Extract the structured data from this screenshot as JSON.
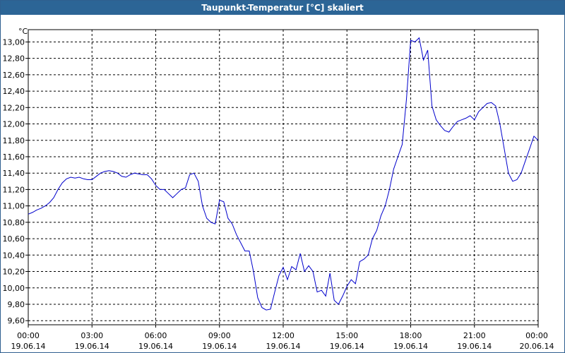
{
  "window": {
    "title": "Taupunkt-Temperatur [°C] skaliert"
  },
  "colors": {
    "line": "#0000cc",
    "grid": "#000000",
    "titlebar": "#2c6596"
  },
  "chart_data": {
    "type": "line",
    "title": "Taupunkt-Temperatur [°C] skaliert",
    "unit": "°C",
    "grid": true,
    "ylim": [
      9.55,
      13.15
    ],
    "y_ticks": [
      "13,00",
      "12,80",
      "12,60",
      "12,40",
      "12,20",
      "12,00",
      "11,80",
      "11,60",
      "11,40",
      "11,20",
      "11,00",
      "10,80",
      "10,60",
      "10,40",
      "10,20",
      "10,00",
      "9,80",
      "9,60"
    ],
    "y_tick_values": [
      13.0,
      12.8,
      12.6,
      12.4,
      12.2,
      12.0,
      11.8,
      11.6,
      11.4,
      11.2,
      11.0,
      10.8,
      10.6,
      10.4,
      10.2,
      10.0,
      9.8,
      9.6
    ],
    "xlim": [
      0,
      24
    ],
    "x_ticks": [
      {
        "time": "00:00",
        "date": "19.06.14"
      },
      {
        "time": "03:00",
        "date": "19.06.14"
      },
      {
        "time": "06:00",
        "date": "19.06.14"
      },
      {
        "time": "09:00",
        "date": "19.06.14"
      },
      {
        "time": "12:00",
        "date": "19.06.14"
      },
      {
        "time": "15:00",
        "date": "19.06.14"
      },
      {
        "time": "18:00",
        "date": "19.06.14"
      },
      {
        "time": "21:00",
        "date": "19.06.14"
      },
      {
        "time": "00:00",
        "date": "20.06.14"
      }
    ],
    "x_tick_values": [
      0,
      3,
      6,
      9,
      12,
      15,
      18,
      21,
      24
    ],
    "series": [
      {
        "x": [
          0,
          0.2,
          0.4,
          0.6,
          0.8,
          1.0,
          1.2,
          1.4,
          1.6,
          1.8,
          2.0,
          2.2,
          2.4,
          2.6,
          2.8,
          3.0,
          3.2,
          3.4,
          3.6,
          3.8,
          4.0,
          4.2,
          4.4,
          4.6,
          4.8,
          5.0,
          5.2,
          5.4,
          5.6,
          5.8,
          6.0,
          6.2,
          6.4,
          6.6,
          6.8,
          7.0,
          7.2,
          7.4,
          7.6,
          7.8,
          8.0,
          8.2,
          8.4,
          8.6,
          8.8,
          9.0,
          9.2,
          9.4,
          9.6,
          9.8,
          10.0,
          10.2,
          10.4,
          10.6,
          10.8,
          11.0,
          11.2,
          11.4,
          11.6,
          11.8,
          12.0,
          12.2,
          12.4,
          12.6,
          12.8,
          13.0,
          13.2,
          13.4,
          13.6,
          13.8,
          14.0,
          14.2,
          14.4,
          14.6,
          14.8,
          15.0,
          15.2,
          15.4,
          15.6,
          15.8,
          16.0,
          16.2,
          16.4,
          16.6,
          16.8,
          17.0,
          17.2,
          17.4,
          17.6,
          17.8,
          18.0,
          18.2,
          18.4,
          18.6,
          18.8,
          19.0,
          19.2,
          19.4,
          19.6,
          19.8,
          20.0,
          20.2,
          20.4,
          20.6,
          20.8,
          21.0,
          21.2,
          21.4,
          21.6,
          21.8,
          22.0,
          22.2,
          22.4,
          22.6,
          22.8,
          23.0,
          23.2,
          23.4,
          23.6,
          23.8,
          24.0
        ],
        "values": [
          10.9,
          10.92,
          10.95,
          10.97,
          11.0,
          11.04,
          11.1,
          11.2,
          11.28,
          11.33,
          11.35,
          11.34,
          11.35,
          11.33,
          11.32,
          11.32,
          11.36,
          11.4,
          11.42,
          11.43,
          11.42,
          11.4,
          11.36,
          11.35,
          11.38,
          11.4,
          11.39,
          11.38,
          11.38,
          11.33,
          11.25,
          11.2,
          11.2,
          11.15,
          11.1,
          11.15,
          11.2,
          11.22,
          11.38,
          11.4,
          11.3,
          11.0,
          10.85,
          10.8,
          10.78,
          11.07,
          11.05,
          10.85,
          10.78,
          10.65,
          10.55,
          10.45,
          10.45,
          10.2,
          9.88,
          9.76,
          9.73,
          9.74,
          9.95,
          10.15,
          10.25,
          10.1,
          10.26,
          10.22,
          10.42,
          10.2,
          10.27,
          10.2,
          9.95,
          9.97,
          9.9,
          10.18,
          9.85,
          9.8,
          9.9,
          10.02,
          10.1,
          10.05,
          10.32,
          10.35,
          10.4,
          10.6,
          10.7,
          10.88,
          11.0,
          11.2,
          11.45,
          11.6,
          11.75,
          12.3,
          13.02,
          13.0,
          13.05,
          12.78,
          12.9,
          12.22,
          12.05,
          11.98,
          11.92,
          11.9,
          11.97,
          12.03,
          12.05,
          12.07,
          12.1,
          12.05,
          12.15,
          12.2,
          12.25,
          12.26,
          12.22,
          12.0,
          11.7,
          11.4,
          11.3,
          11.32,
          11.4,
          11.55,
          11.7,
          11.85,
          11.8
        ]
      }
    ]
  }
}
